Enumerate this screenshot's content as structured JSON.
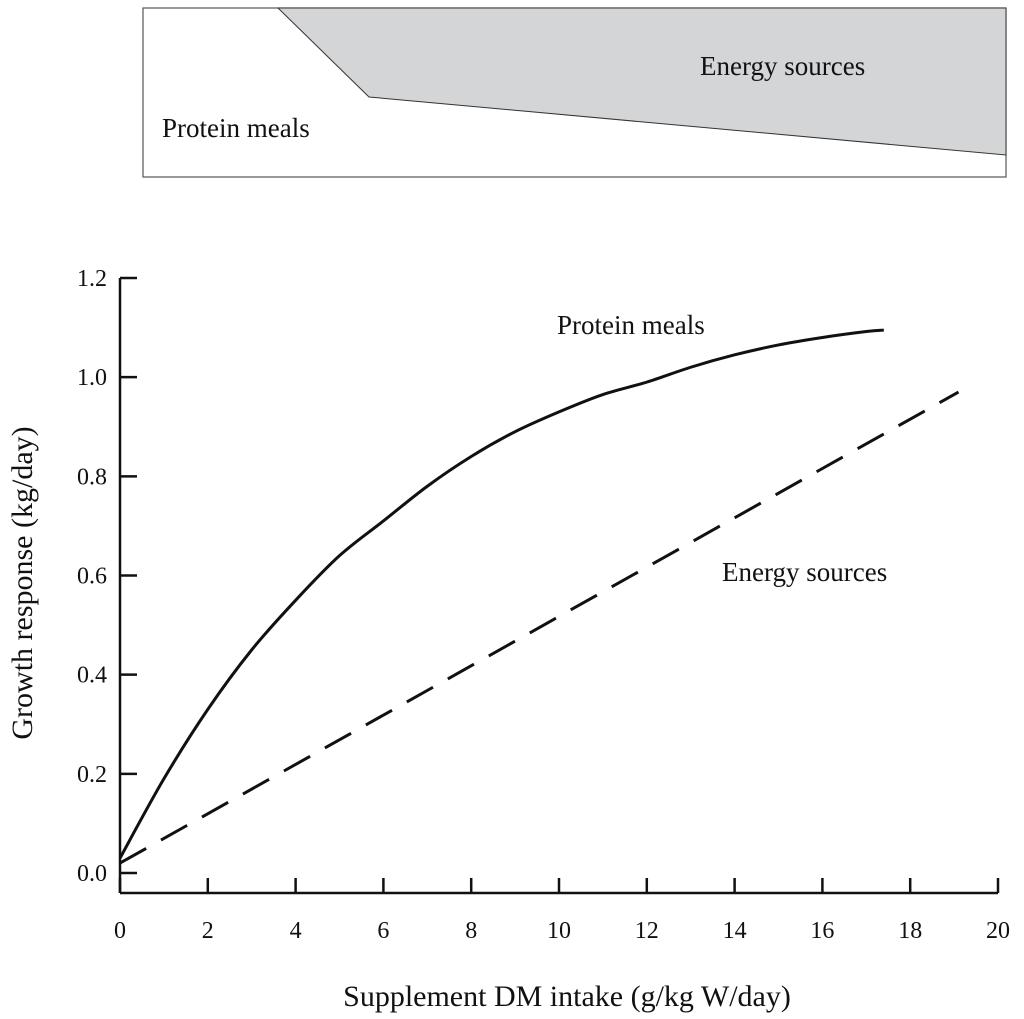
{
  "top_panel": {
    "labels": {
      "energy": "Energy sources",
      "protein": "Protein meals"
    },
    "shade_color": "#d4d5d7",
    "energy_share_start_x": 3.5,
    "energy_share_break_x": 5.6,
    "note": ""
  },
  "chart_data": {
    "type": "line",
    "title": "",
    "xlabel": "Supplement DM intake (g/kg W/day)",
    "ylabel": "Growth response (kg/day)",
    "xlim": [
      0,
      20
    ],
    "ylim": [
      0,
      1.2
    ],
    "xticks": [
      "0",
      "2",
      "4",
      "6",
      "8",
      "10",
      "12",
      "14",
      "16",
      "18",
      "20"
    ],
    "yticks": [
      "0.0",
      "0.2",
      "0.4",
      "0.6",
      "0.8",
      "1.0",
      "1.2"
    ],
    "grid": false,
    "series": [
      {
        "name": "Protein meals",
        "style": "solid",
        "x": [
          0,
          1,
          2,
          3,
          4,
          5,
          6,
          7,
          8,
          9,
          10,
          11,
          12,
          13,
          14,
          15,
          16,
          17,
          17.4
        ],
        "y": [
          0.03,
          0.19,
          0.33,
          0.45,
          0.55,
          0.64,
          0.71,
          0.78,
          0.84,
          0.89,
          0.93,
          0.965,
          0.99,
          1.02,
          1.045,
          1.065,
          1.08,
          1.092,
          1.095
        ]
      },
      {
        "name": "Energy sources",
        "style": "dashed",
        "x": [
          0,
          19.1
        ],
        "y": [
          0.02,
          0.97
        ]
      }
    ],
    "annotations": [
      "Protein meals",
      "Energy sources"
    ]
  }
}
